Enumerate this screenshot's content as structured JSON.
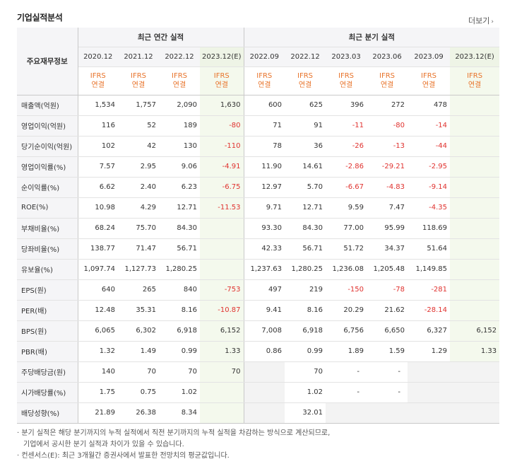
{
  "header": {
    "title": "기업실적분석",
    "more_label": "더보기"
  },
  "table": {
    "metric_header": "주요재무정보",
    "annual_group": "최근 연간 실적",
    "quarter_group": "최근 분기 실적",
    "periods": [
      "2020.12",
      "2021.12",
      "2022.12",
      "2023.12(E)",
      "2022.09",
      "2022.12",
      "2023.03",
      "2023.06",
      "2023.09",
      "2023.12(E)"
    ],
    "standards": [
      [
        "IFRS",
        "연결"
      ],
      [
        "IFRS",
        "연결"
      ],
      [
        "IFRS",
        "연결"
      ],
      [
        "IFRS",
        "연결"
      ],
      [
        "IFRS",
        "연결"
      ],
      [
        "IFRS",
        "연결"
      ],
      [
        "IFRS",
        "연결"
      ],
      [
        "IFRS",
        "연결"
      ],
      [
        "IFRS",
        "연결"
      ],
      [
        "IFRS",
        "연결"
      ]
    ],
    "rows": [
      {
        "label": "매출액(억원)",
        "values": [
          "1,534",
          "1,757",
          "2,090",
          "1,630",
          "600",
          "625",
          "396",
          "272",
          "478",
          ""
        ]
      },
      {
        "label": "영업이익(억원)",
        "values": [
          "116",
          "52",
          "189",
          "-80",
          "71",
          "91",
          "-11",
          "-80",
          "-14",
          ""
        ]
      },
      {
        "label": "당기순이익(억원)",
        "values": [
          "102",
          "42",
          "130",
          "-110",
          "78",
          "36",
          "-26",
          "-13",
          "-44",
          ""
        ]
      },
      {
        "label": "영업이익률(%)",
        "values": [
          "7.57",
          "2.95",
          "9.06",
          "-4.91",
          "11.90",
          "14.61",
          "-2.86",
          "-29.21",
          "-2.95",
          ""
        ]
      },
      {
        "label": "순이익률(%)",
        "values": [
          "6.62",
          "2.40",
          "6.23",
          "-6.75",
          "12.97",
          "5.70",
          "-6.67",
          "-4.83",
          "-9.14",
          ""
        ]
      },
      {
        "label": "ROE(%)",
        "values": [
          "10.98",
          "4.29",
          "12.71",
          "-11.53",
          "9.71",
          "12.71",
          "9.59",
          "7.47",
          "-4.35",
          ""
        ]
      },
      {
        "label": "부채비율(%)",
        "values": [
          "68.24",
          "75.70",
          "84.30",
          "",
          "93.30",
          "84.30",
          "77.00",
          "95.99",
          "118.69",
          ""
        ]
      },
      {
        "label": "당좌비율(%)",
        "values": [
          "138.77",
          "71.47",
          "56.71",
          "",
          "42.33",
          "56.71",
          "51.72",
          "34.37",
          "51.64",
          ""
        ]
      },
      {
        "label": "유보율(%)",
        "values": [
          "1,097.74",
          "1,127.73",
          "1,280.25",
          "",
          "1,237.63",
          "1,280.25",
          "1,236.08",
          "1,205.48",
          "1,149.85",
          ""
        ]
      },
      {
        "label": "EPS(원)",
        "values": [
          "640",
          "265",
          "840",
          "-753",
          "497",
          "219",
          "-150",
          "-78",
          "-281",
          ""
        ]
      },
      {
        "label": "PER(배)",
        "values": [
          "12.48",
          "35.31",
          "8.16",
          "-10.87",
          "9.41",
          "8.16",
          "20.29",
          "21.62",
          "-28.14",
          ""
        ]
      },
      {
        "label": "BPS(원)",
        "values": [
          "6,065",
          "6,302",
          "6,918",
          "6,152",
          "7,008",
          "6,918",
          "6,756",
          "6,650",
          "6,327",
          "6,152"
        ]
      },
      {
        "label": "PBR(배)",
        "values": [
          "1.32",
          "1.49",
          "0.99",
          "1.33",
          "0.86",
          "0.99",
          "1.89",
          "1.59",
          "1.29",
          "1.33"
        ]
      },
      {
        "label": "주당배당금(원)",
        "values": [
          "140",
          "70",
          "70",
          "70",
          "",
          "70",
          "-",
          "-",
          "",
          ""
        ]
      },
      {
        "label": "시가배당률(%)",
        "values": [
          "1.75",
          "0.75",
          "1.02",
          "",
          "",
          "1.02",
          "-",
          "-",
          "",
          ""
        ]
      },
      {
        "label": "배당성향(%)",
        "values": [
          "21.89",
          "26.38",
          "8.34",
          "",
          "",
          "32.01",
          "",
          "",
          "",
          ""
        ]
      }
    ]
  },
  "notes": {
    "line1": "· 분기 실적은 해당 분기까지의 누적 실적에서 직전 분기까지의 누적 실적을 차감하는 방식으로 계산되므로,",
    "line2": "기업에서 공시한 분기 실적과 차이가 있을 수 있습니다.",
    "line3": "· 컨센서스(E): 최근 3개월간 증권사에서 발표한 전망치의 평균값입니다."
  },
  "colors": {
    "estimate_bg": "#f4f9ed",
    "negative": "#e0322f",
    "ifrs": "#e8732a",
    "header_bg": "#f5f5f7"
  }
}
